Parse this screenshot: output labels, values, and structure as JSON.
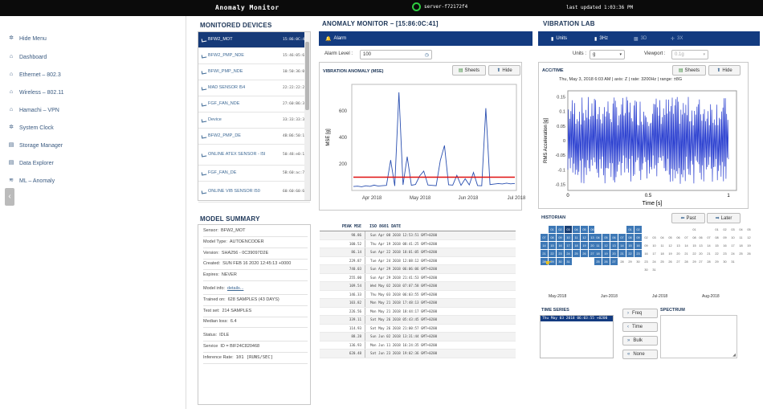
{
  "topbar": {
    "title": "Anomaly Monitor",
    "server": "server-f72172f4",
    "updated": "last updated 1:03:36 PM"
  },
  "sidebar": {
    "items": [
      {
        "label": "Hide Menu",
        "icon": "gear-icon"
      },
      {
        "label": "Dashboard",
        "icon": "home-icon"
      },
      {
        "label": "Ethernet – 802.3",
        "icon": "home-icon"
      },
      {
        "label": "Wireless – 802.11",
        "icon": "home-icon"
      },
      {
        "label": "Hamachi – VPN",
        "icon": "home-icon"
      },
      {
        "label": "System Clock",
        "icon": "gear-icon"
      },
      {
        "label": "Storage Manager",
        "icon": "database-icon"
      },
      {
        "label": "Data Explorer",
        "icon": "database-icon"
      },
      {
        "label": "ML – Anomaly",
        "icon": "chart-icon"
      }
    ]
  },
  "devices": {
    "title": "MONITORED DEVICES",
    "items": [
      {
        "name": "BFW2_MOT",
        "time": "15:86:0C:41"
      },
      {
        "name": "BFW2_PMP_NDE",
        "time": "15:46:05:60"
      },
      {
        "name": "BFWI_PMP_NDE",
        "time": "10:50:36:06"
      },
      {
        "name": "MAD SENSOR I54",
        "time": "22:22:22:22"
      },
      {
        "name": "FGF_FAN_NDE",
        "time": "27:60:B6:34"
      },
      {
        "name": "Device",
        "time": "33:33:33:33"
      },
      {
        "name": "BFW2_PMP_DE",
        "time": "4B:B6:50:19"
      },
      {
        "name": "ONLINE ATEX SENSOR - I5I",
        "time": "50:48:e0:18"
      },
      {
        "name": "FGF_FAN_DE",
        "time": "5B:60:ac:7b"
      },
      {
        "name": "ONLINE VIB SENSOR I50",
        "time": "60:60:60:60"
      }
    ]
  },
  "summary": {
    "title": "MODEL SUMMARY",
    "rows": [
      {
        "k": "Sensor:",
        "v": "BFW2_MOT"
      },
      {
        "k": "Model Type:",
        "v": "AUTOENCODER"
      },
      {
        "k": "Version:",
        "v": "SHA256 - 0C39097D2E"
      },
      {
        "k": "Created:",
        "v": "SUN FEB 16 2020 12:45:13 +0000"
      },
      {
        "k": "Expires:",
        "v": "NEVER"
      },
      {
        "k": "Model info:",
        "v": "details..."
      },
      {
        "k": "Trained on:",
        "v": "628 SAMPLES (43 DAYS)"
      },
      {
        "k": "Test set:",
        "v": "214 SAMPLES"
      },
      {
        "k": "Median loss:",
        "v": "6.4"
      },
      {
        "k": "Status:",
        "v": "IDLE"
      },
      {
        "k": "Service",
        "v": "ID = BIF24C820468"
      },
      {
        "k": "Inference Rate:",
        "v": "101   [RUNS/SEC]"
      }
    ]
  },
  "monitor": {
    "title": "ANOMALY MONITOR – [15:86:0C:41]",
    "alarm_tab": "Alarm",
    "alarm_label": "Alarm Level :",
    "alarm_value": "100",
    "chart_title": "VIBRATION ANOMALY (MSE)",
    "sheets": "Sheets",
    "hide": "Hide"
  },
  "table": {
    "head_mse": "PEAK MSE",
    "head_date": "ISO 8601 DATE",
    "rows": [
      {
        "v": "98.86",
        "d": "Sun Apr 08 2018 12:53:51 GMT+0200"
      },
      {
        "v": "100.52",
        "d": "Thu Apr 19 2018 08:41:25 GMT+0200"
      },
      {
        "v": "86.14",
        "d": "Sun Apr 22 2018 18:01:05 GMT+0200"
      },
      {
        "v": "229.87",
        "d": "Tue Apr 24 2018 12:08:12 GMT+0200"
      },
      {
        "v": "740.03",
        "d": "Sun Apr 29 2018 06:06:06 GMT+0200"
      },
      {
        "v": "255.00",
        "d": "Sun Apr 29 2018 21:41:53 GMT+0200"
      },
      {
        "v": "109.54",
        "d": "Wed May 02 2018 07:07:58 GMT+0200"
      },
      {
        "v": "146.33",
        "d": "Thu May 03 2018 06:03:55 GMT+0200"
      },
      {
        "v": "103.82",
        "d": "Mon May 21 2018 17:48:13 GMT+0200"
      },
      {
        "v": "226.56",
        "d": "Mon May 21 2018 18:44:17 GMT+0200"
      },
      {
        "v": "339.11",
        "d": "Sat May 26 2018 05:43:45 GMT+0200"
      },
      {
        "v": "114.93",
        "d": "Sat May 26 2018 21:00:57 GMT+0200"
      },
      {
        "v": "88.28",
        "d": "Sun Jun 02 2018 13:31:44 GMT+0200"
      },
      {
        "v": "136.93",
        "d": "Mon Jun 11 2018 16:24:35 GMT+0200"
      },
      {
        "v": "620.48",
        "d": "Sat Jun 23 2018 19:02:36 GMT+0200"
      }
    ]
  },
  "vib": {
    "title": "VIBRATION LAB",
    "tabs": [
      "Units",
      "3Hz",
      "3D",
      "3X"
    ],
    "units_label": "Units :",
    "units_value": "g",
    "viewport_label": "Viewport :",
    "viewport_value": "0.1g",
    "acc_title": "ACC/TIME",
    "acc_info": "Thu, May 3, 2018 6:03 AM | axis: Z | rate: 3200Hz | range: ±8G",
    "sheets": "Sheets",
    "hide": "Hide",
    "historian": "HISTORIAN",
    "past": "Past",
    "later": "Later",
    "months": [
      "May-2018",
      "Jun-2018",
      "Jul-2018",
      "Aug-2018"
    ],
    "ts_title": "TIME SERIES",
    "ts_value": "Thu May 03 2018 06:03:55 +0200",
    "spectrum": "SPECTRUM",
    "btns": [
      "Freq",
      "Time",
      "Bulk",
      "None"
    ]
  },
  "chart_data": [
    {
      "type": "line",
      "title": "VIBRATION ANOMALY (MSE)",
      "ylabel": "MSE [g]",
      "x_ticks": [
        "Apr 2018",
        "May 2018",
        "Jun 2018",
        "Jul 2018"
      ],
      "y_ticks": [
        200,
        400,
        600
      ],
      "ylim": [
        0,
        800
      ],
      "threshold": 100,
      "series": [
        {
          "values": [
            30,
            32,
            28,
            35,
            31,
            40,
            33,
            36,
            38,
            229,
            34,
            740,
            42,
            255,
            39,
            45,
            109,
            146,
            41,
            38,
            36,
            226,
            339,
            43,
            40,
            114,
            38,
            88,
            42,
            136,
            37,
            35,
            620,
            44,
            48,
            52,
            49,
            55,
            50,
            53
          ]
        }
      ]
    },
    {
      "type": "line",
      "title": "ACC/TIME",
      "xlabel": "Time [s]",
      "ylabel": "RMS Acceleration [g]",
      "x_ticks": [
        0,
        0.5,
        1
      ],
      "y_ticks": [
        0.15,
        0.1,
        0.05,
        0,
        -0.05,
        -0.1,
        -0.15
      ],
      "xlim": [
        0,
        1.05
      ],
      "ylim": [
        -0.17,
        0.17
      ],
      "series": [
        {
          "values": []
        }
      ]
    }
  ]
}
